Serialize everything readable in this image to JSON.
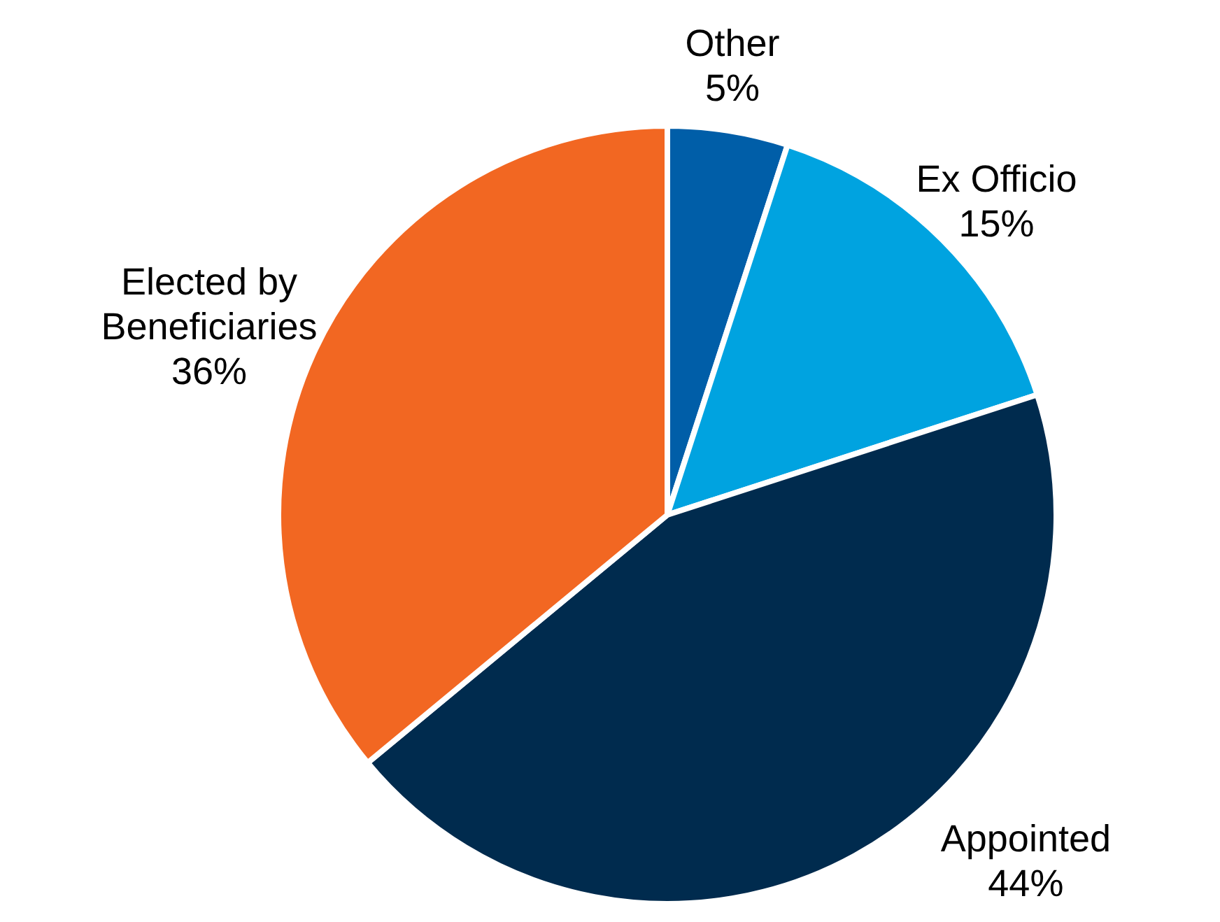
{
  "chart_data": {
    "type": "pie",
    "categories": [
      "Other",
      "Ex Officio",
      "Appointed",
      "Elected by\nBeneficiaries"
    ],
    "values": [
      5,
      15,
      44,
      36
    ],
    "value_labels": [
      "5%",
      "15%",
      "44%",
      "36%"
    ],
    "colors": [
      "#005ea8",
      "#00a3e0",
      "#002b4e",
      "#f26722"
    ],
    "legend": false
  }
}
